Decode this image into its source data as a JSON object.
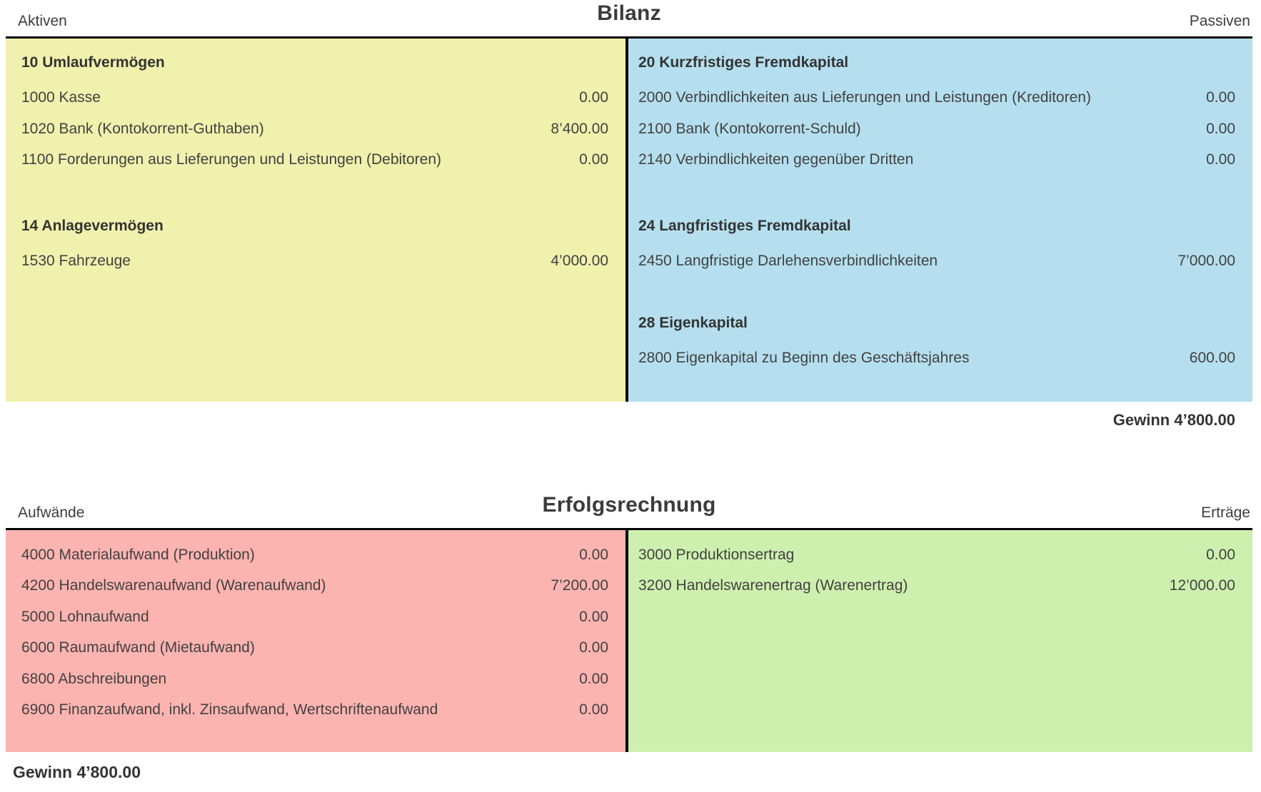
{
  "colors": {
    "aktiven-bg": "#f0f1ad",
    "passiven-bg": "#b5dfee",
    "aufwaende-bg": "#fcb4b1",
    "ertraege-bg": "#cef0af",
    "line": "#000000"
  },
  "bilanz": {
    "title": "Bilanz",
    "left_label": "Aktiven",
    "right_label": "Passiven",
    "left_groups": [
      {
        "header": "10 Umlaufvermögen",
        "rows": [
          {
            "label": "1000 Kasse",
            "value": "0.00"
          },
          {
            "label": "1020 Bank (Kontokorrent-Guthaben)",
            "value": "8’400.00"
          },
          {
            "label": "1100 Forderungen aus Lieferungen und Leistungen (Debitoren)",
            "value": "0.00"
          }
        ]
      },
      {
        "header": "14 Anlagevermögen",
        "rows": [
          {
            "label": "1530 Fahrzeuge",
            "value": "4’000.00"
          }
        ]
      }
    ],
    "right_groups": [
      {
        "header": "20 Kurzfristiges Fremdkapital",
        "rows": [
          {
            "label": "2000 Verbindlichkeiten aus Lieferungen und Leistungen (Kreditoren)",
            "value": "0.00"
          },
          {
            "label": "2100 Bank (Kontokorrent-Schuld)",
            "value": "0.00"
          },
          {
            "label": "2140 Verbindlichkeiten gegenüber Dritten",
            "value": "0.00"
          }
        ]
      },
      {
        "header": "24 Langfristiges Fremdkapital",
        "rows": [
          {
            "label": "2450 Langfristige Darlehensverbindlichkeiten",
            "value": "7’000.00"
          }
        ]
      },
      {
        "header": "28 Eigenkapital",
        "rows": [
          {
            "label": "2800 Eigenkapital zu Beginn des Geschäftsjahres",
            "value": "600.00"
          }
        ]
      }
    ],
    "result": "Gewinn 4’800.00"
  },
  "erfolgsrechnung": {
    "title": "Erfolgsrechnung",
    "left_label": "Aufwände",
    "right_label": "Erträge",
    "left_rows": [
      {
        "label": "4000 Materialaufwand (Produktion)",
        "value": "0.00"
      },
      {
        "label": "4200 Handelswarenaufwand (Warenaufwand)",
        "value": "7’200.00"
      },
      {
        "label": "5000 Lohnaufwand",
        "value": "0.00"
      },
      {
        "label": "6000 Raumaufwand (Mietaufwand)",
        "value": "0.00"
      },
      {
        "label": "6800 Abschreibungen",
        "value": "0.00"
      },
      {
        "label": "6900 Finanzaufwand, inkl. Zinsaufwand, Wertschriftenaufwand",
        "value": "0.00"
      }
    ],
    "right_rows": [
      {
        "label": "3000 Produktionsertrag",
        "value": "0.00"
      },
      {
        "label": "3200 Handelswarenertrag (Warenertrag)",
        "value": "12’000.00"
      }
    ],
    "result": "Gewinn 4’800.00"
  }
}
